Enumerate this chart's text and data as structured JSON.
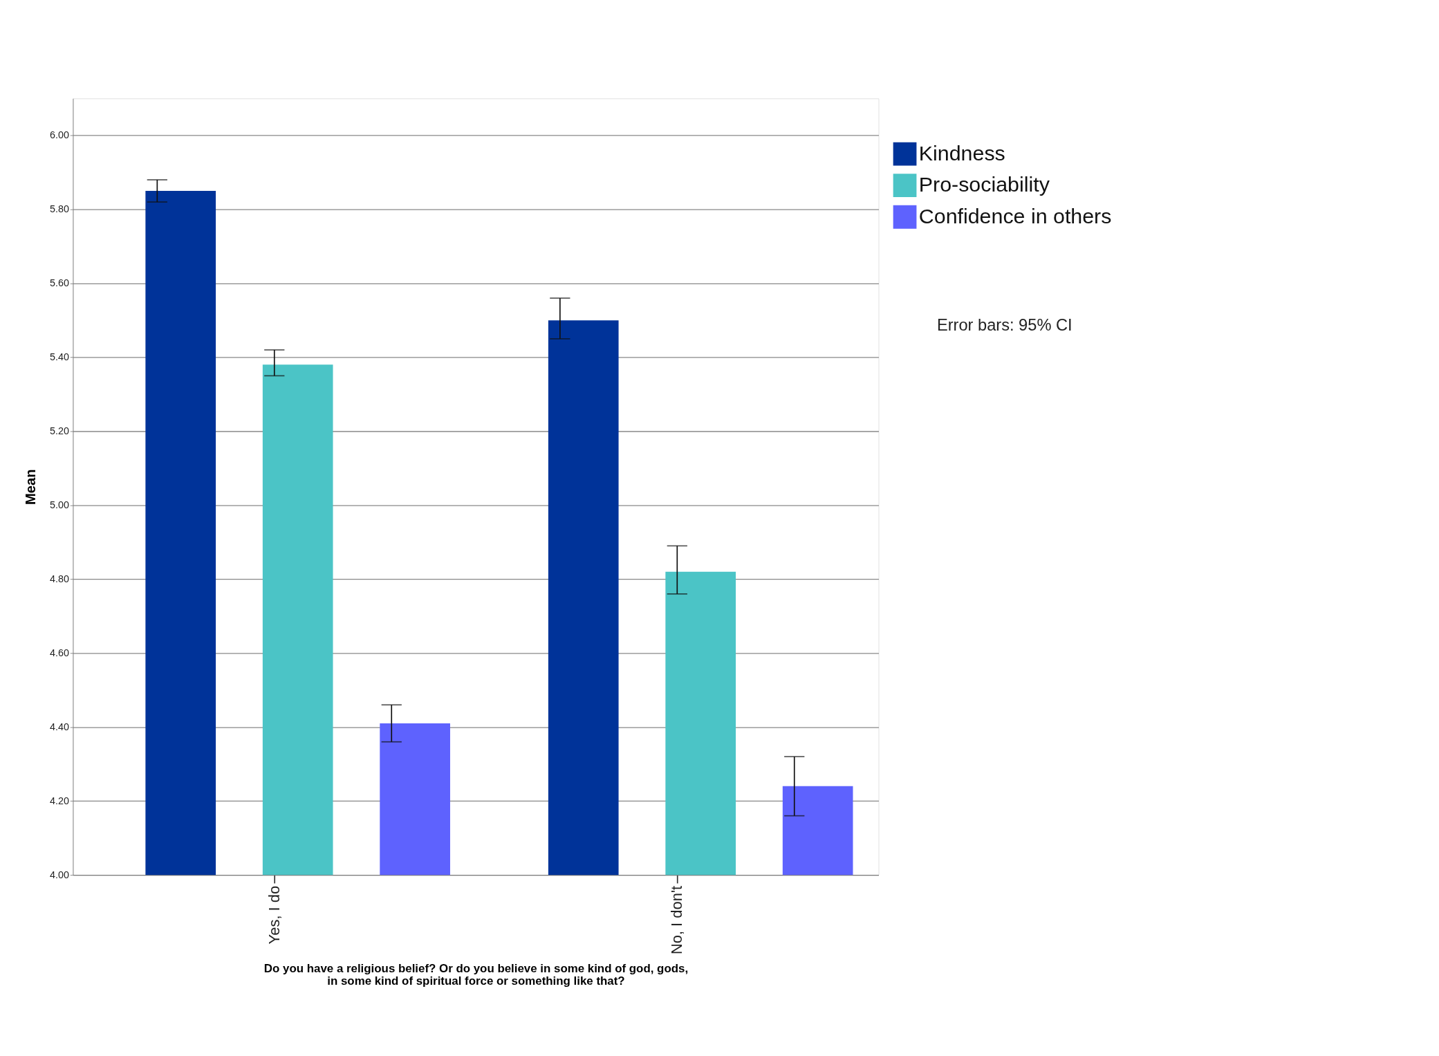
{
  "chart_data": {
    "type": "bar",
    "xlabel": "Do you have a religious belief? Or do you believe in some kind of god, gods, in some kind of spiritual force or something like that?",
    "ylabel": "Mean",
    "categories": [
      "Yes, I do",
      "No, I don't"
    ],
    "series": [
      {
        "name": "Kindness",
        "color": "#003399",
        "values": [
          5.85,
          5.5
        ],
        "errors": [
          [
            5.82,
            5.88
          ],
          [
            5.45,
            5.56
          ]
        ]
      },
      {
        "name": "Pro-sociability",
        "color": "#4bc4c6",
        "values": [
          5.38,
          4.82
        ],
        "errors": [
          [
            5.35,
            5.42
          ],
          [
            4.76,
            4.89
          ]
        ]
      },
      {
        "name": "Confidence in others",
        "color": "#5e62fe",
        "values": [
          4.41,
          4.24
        ],
        "errors": [
          [
            4.36,
            4.46
          ],
          [
            4.16,
            4.32
          ]
        ]
      }
    ],
    "ylim": [
      4.0,
      6.1
    ],
    "yticks": [
      {
        "value": 4.0,
        "label": "4.00"
      },
      {
        "value": 4.2,
        "label": "4.20"
      },
      {
        "value": 4.4,
        "label": "4.40"
      },
      {
        "value": 4.6,
        "label": "4.60"
      },
      {
        "value": 4.8,
        "label": "4.80"
      },
      {
        "value": 5.0,
        "label": "5.00"
      },
      {
        "value": 5.2,
        "label": "5.20"
      },
      {
        "value": 5.4,
        "label": "5.40"
      },
      {
        "value": 5.6,
        "label": "5.60"
      },
      {
        "value": 5.8,
        "label": "5.80"
      },
      {
        "value": 6.0,
        "label": "6.00"
      }
    ],
    "grid": "y",
    "legend": "top right",
    "annotations": [
      "Error bars: 95% CI"
    ]
  }
}
